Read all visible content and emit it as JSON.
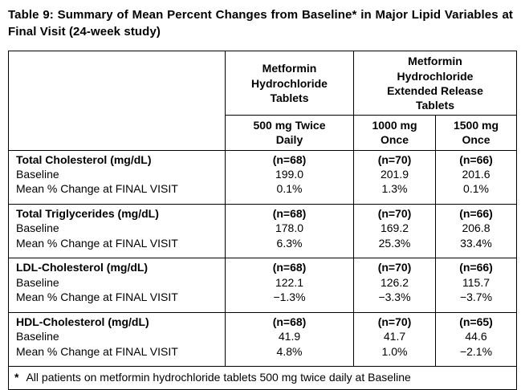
{
  "page": {
    "title": "Table 9: Summary of Mean Percent Changes from Baseline* in Major Lipid Variables at Final Visit (24-week study)"
  },
  "table": {
    "product_headers": {
      "ir": "Metformin\nHydrochloride\nTablets",
      "er": "Metformin\nHydrochloride\nExtended Release\nTablets"
    },
    "dose_headers": {
      "ir_500": "500 mg Twice\nDaily",
      "er_1000": "1000 mg\nOnce",
      "er_1500": "1500 mg\nOnce"
    },
    "groups": [
      {
        "label": "Total Cholesterol (mg/dL)",
        "n": [
          "(n=68)",
          "(n=70)",
          "(n=66)"
        ],
        "rows": [
          {
            "label": "Baseline",
            "values": [
              "199.0",
              "201.9",
              "201.6"
            ]
          },
          {
            "label": "Mean % Change at FINAL VISIT",
            "values": [
              "0.1%",
              "1.3%",
              "0.1%"
            ]
          }
        ]
      },
      {
        "label": "Total Triglycerides (mg/dL)",
        "n": [
          "(n=68)",
          "(n=70)",
          "(n=66)"
        ],
        "rows": [
          {
            "label": "Baseline",
            "values": [
              "178.0",
              "169.2",
              "206.8"
            ]
          },
          {
            "label": "Mean % Change at FINAL VISIT",
            "values": [
              "6.3%",
              "25.3%",
              "33.4%"
            ]
          }
        ]
      },
      {
        "label": "LDL-Cholesterol (mg/dL)",
        "n": [
          "(n=68)",
          "(n=70)",
          "(n=66)"
        ],
        "rows": [
          {
            "label": "Baseline",
            "values": [
              "122.1",
              "126.2",
              "115.7"
            ]
          },
          {
            "label": "Mean % Change at FINAL VISIT",
            "values": [
              "−1.3%",
              "−3.3%",
              "−3.7%"
            ]
          }
        ]
      },
      {
        "label": "HDL-Cholesterol (mg/dL)",
        "n": [
          "(n=68)",
          "(n=70)",
          "(n=65)"
        ],
        "rows": [
          {
            "label": "Baseline",
            "values": [
              "41.9",
              "41.7",
              "44.6"
            ]
          },
          {
            "label": "Mean % Change at FINAL VISIT",
            "values": [
              "4.8%",
              "1.0%",
              "−2.1%"
            ]
          }
        ]
      }
    ],
    "footnote": {
      "marker": "*",
      "text": "All patients on metformin hydrochloride tablets 500 mg twice daily at Baseline"
    }
  }
}
